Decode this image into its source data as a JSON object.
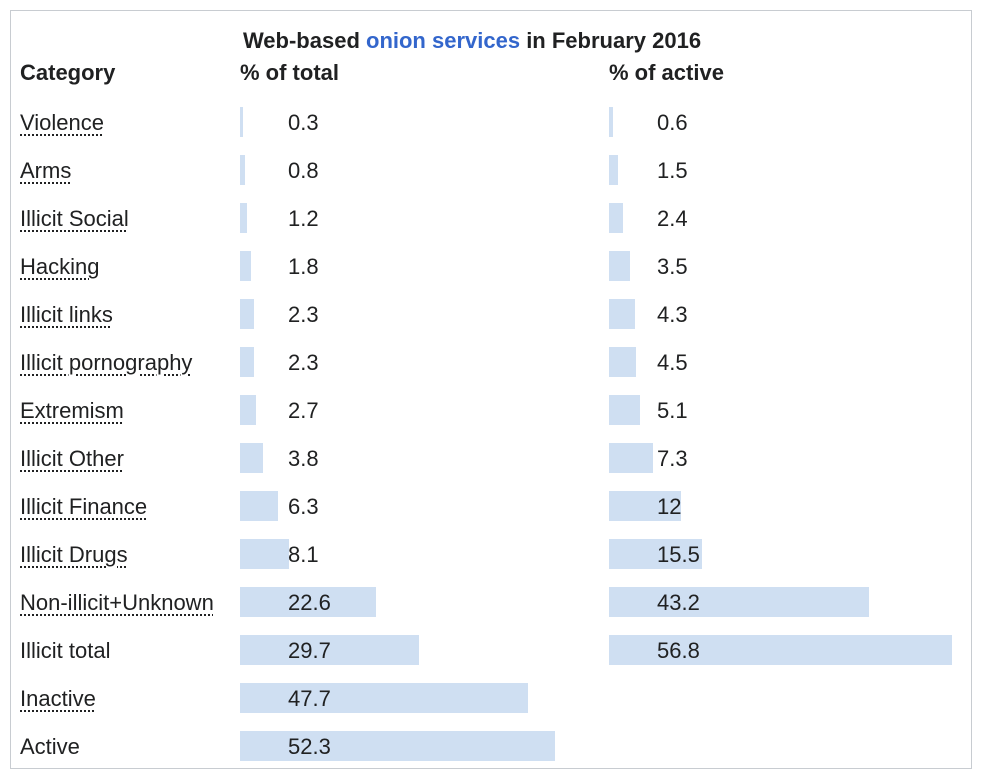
{
  "caption": {
    "prefix": "Web-based ",
    "link_text": "onion services",
    "suffix": " in February 2016"
  },
  "headers": {
    "category": "Category",
    "total": "% of total",
    "active": "% of active"
  },
  "colors": {
    "bar": "#cfdff2",
    "link": "#3366cc",
    "text": "#202122"
  },
  "chart_data": {
    "type": "bar",
    "title": "Web-based onion services in February 2016",
    "xlabel": "",
    "ylabel": "",
    "categories": [
      "Violence",
      "Arms",
      "Illicit Social",
      "Hacking",
      "Illicit links",
      "Illicit pornography",
      "Extremism",
      "Illicit Other",
      "Illicit Finance",
      "Illicit Drugs",
      "Non-illicit+Unknown",
      "Illicit total",
      "Inactive",
      "Active"
    ],
    "linked": [
      true,
      true,
      true,
      true,
      true,
      true,
      true,
      true,
      true,
      true,
      true,
      false,
      true,
      false
    ],
    "series": [
      {
        "name": "% of total",
        "values": [
          0.3,
          0.8,
          1.2,
          1.8,
          2.3,
          2.3,
          2.7,
          3.8,
          6.3,
          8.1,
          22.6,
          29.7,
          47.7,
          52.3
        ],
        "labels": [
          "0.3",
          "0.8",
          "1.2",
          "1.8",
          "2.3",
          "2.3",
          "2.7",
          "3.8",
          "6.3",
          "8.1",
          "22.6",
          "29.7",
          "47.7",
          "52.3"
        ]
      },
      {
        "name": "% of active",
        "values": [
          0.6,
          1.5,
          2.4,
          3.5,
          4.3,
          4.5,
          5.1,
          7.3,
          12,
          15.5,
          43.2,
          56.8,
          null,
          null
        ],
        "labels": [
          "0.6",
          "1.5",
          "2.4",
          "3.5",
          "4.3",
          "4.5",
          "5.1",
          "7.3",
          "12",
          "15.5",
          "43.2",
          "56.8",
          "",
          ""
        ]
      }
    ]
  }
}
